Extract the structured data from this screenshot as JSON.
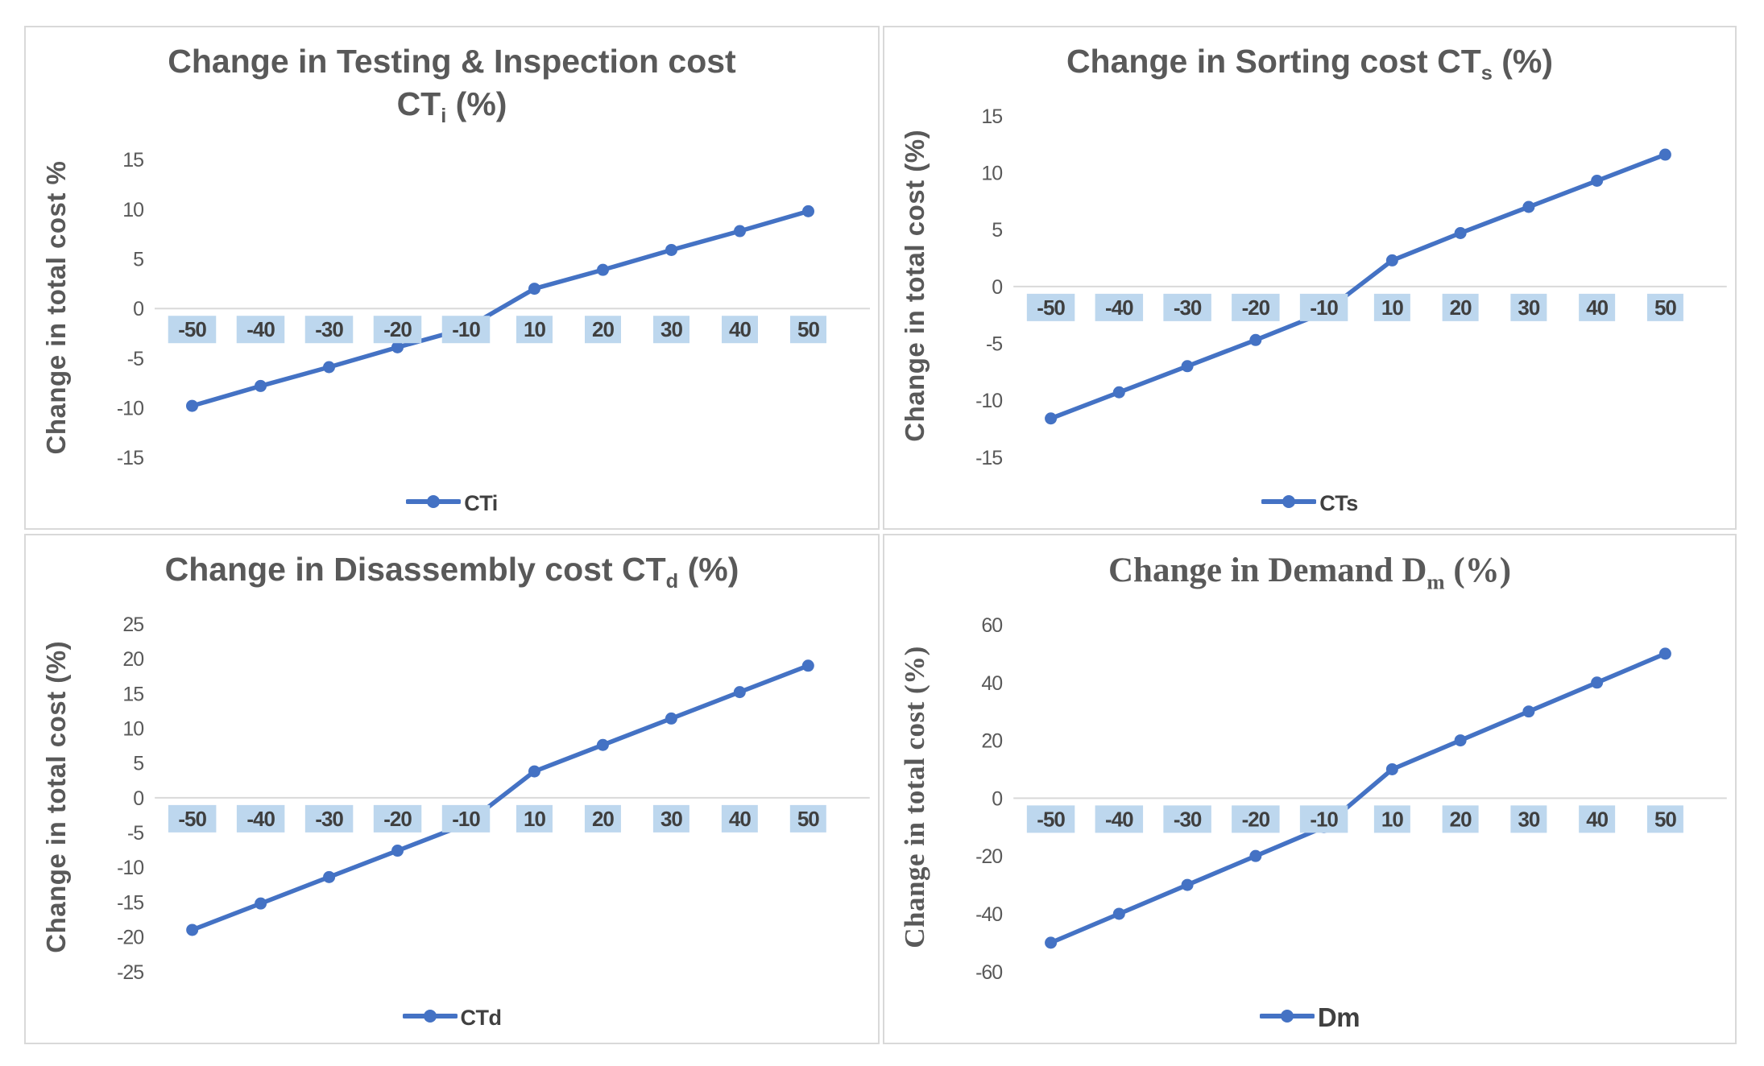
{
  "figure": {
    "description_texts": []
  },
  "colors": {
    "line": "#4472C4",
    "marker": "#4472C4",
    "label_highlight": "#BDD7EE",
    "tick_text": "#595959",
    "xlabel_text": "#3F3F3F",
    "title_text": "#595959",
    "gridline": "#D9D9D9",
    "panel_border": "#D9D9D9"
  },
  "chart_data": [
    {
      "type": "line",
      "title": "Change in Testing & Inspection cost CTi (%)",
      "title_lines": [
        [
          {
            "t": "Change in Testing & Inspection cost"
          }
        ],
        [
          {
            "t": "CT"
          },
          {
            "t": "i",
            "sub": true
          },
          {
            "t": " (%)"
          }
        ]
      ],
      "font": "sans",
      "ylabel": "Change in total cost %",
      "categories": [
        "-50",
        "-40",
        "-30",
        "-20",
        "-10",
        "10",
        "20",
        "30",
        "40",
        "50"
      ],
      "values": [
        -9.8,
        -7.8,
        -5.9,
        -3.9,
        -2.0,
        2.0,
        3.9,
        5.9,
        7.8,
        9.8
      ],
      "yticks": [
        15,
        10,
        5,
        0,
        -5,
        -10,
        -15
      ],
      "ylim": [
        -15,
        15
      ],
      "grid": "zero-line-only",
      "legend": "CTi",
      "legend_position": "bottom"
    },
    {
      "type": "line",
      "title": "Change in Sorting cost CTs (%)",
      "title_lines": [
        [
          {
            "t": "Change in Sorting cost CT"
          },
          {
            "t": "s",
            "sub": true
          },
          {
            "t": " (%)"
          }
        ]
      ],
      "font": "sans",
      "ylabel": "Change in total cost (%)",
      "categories": [
        "-50",
        "-40",
        "-30",
        "-20",
        "-10",
        "10",
        "20",
        "30",
        "40",
        "50"
      ],
      "values": [
        -11.6,
        -9.3,
        -7.0,
        -4.7,
        -2.3,
        2.3,
        4.7,
        7.0,
        9.3,
        11.6
      ],
      "yticks": [
        15,
        10,
        5,
        0,
        -5,
        -10,
        -15
      ],
      "ylim": [
        -15,
        15
      ],
      "grid": "zero-line-only",
      "legend": "CTs",
      "legend_position": "bottom"
    },
    {
      "type": "line",
      "title": "Change in Disassembly cost CTd (%)",
      "title_lines": [
        [
          {
            "t": "Change in Disassembly cost CT"
          },
          {
            "t": "d",
            "sub": true
          },
          {
            "t": " (%)"
          }
        ]
      ],
      "font": "sans",
      "ylabel": "Change in total cost (%)",
      "categories": [
        "-50",
        "-40",
        "-30",
        "-20",
        "-10",
        "10",
        "20",
        "30",
        "40",
        "50"
      ],
      "values": [
        -19.0,
        -15.2,
        -11.4,
        -7.6,
        -3.8,
        3.8,
        7.6,
        11.4,
        15.2,
        19.0
      ],
      "yticks": [
        25,
        20,
        15,
        10,
        5,
        0,
        -5,
        -10,
        -15,
        -20,
        -25
      ],
      "ylim": [
        -25,
        25
      ],
      "grid": "zero-line-only",
      "legend": "CTd",
      "legend_position": "bottom"
    },
    {
      "type": "line",
      "title": "Change in Demand Dm (%)",
      "title_lines": [
        [
          {
            "t": "Change in Demand D"
          },
          {
            "t": "m",
            "sub": true
          },
          {
            "t": " (%)"
          }
        ]
      ],
      "font": "serif",
      "ylabel": "Change in total cost (%)",
      "categories": [
        "-50",
        "-40",
        "-30",
        "-20",
        "-10",
        "10",
        "20",
        "30",
        "40",
        "50"
      ],
      "values": [
        -50,
        -40,
        -30,
        -20,
        -10,
        10,
        20,
        30,
        40,
        50
      ],
      "yticks": [
        60,
        40,
        20,
        0,
        -20,
        -40,
        -60
      ],
      "ylim": [
        -60,
        60
      ],
      "grid": "zero-line-only",
      "legend": "Dm",
      "legend_position": "bottom"
    }
  ]
}
